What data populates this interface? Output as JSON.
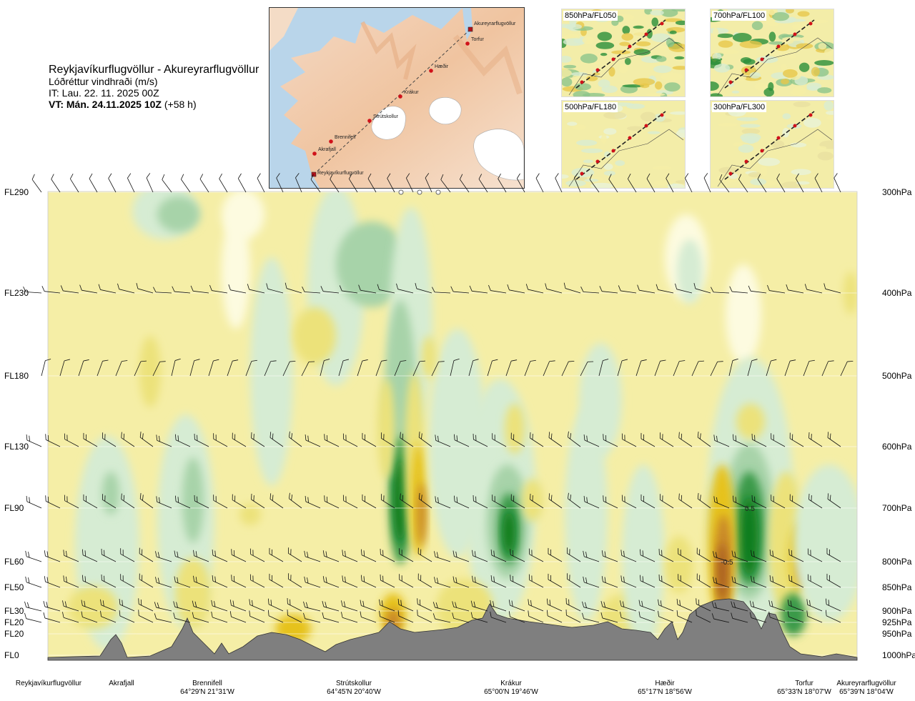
{
  "header": {
    "route": "Reykjavíkurflugvöllur - Akureyrarflugvöllur",
    "parameter": "Lóðréttur vindhraði (m/s)",
    "issue_time": "IT: Lau. 22. 11. 2025 00Z",
    "valid_label": "VT: Mán. 24.11.2025 10Z",
    "valid_offset": "(+58 h)"
  },
  "mini_maps": [
    {
      "label": "850hPa/FL050"
    },
    {
      "label": "700hPa/FL100"
    },
    {
      "label": "500hPa/FL180"
    },
    {
      "label": "300hPa/FL300"
    }
  ],
  "route_map": {
    "places": [
      "Akureyrarflugvöllur",
      "Torfur",
      "Hæðir",
      "Krákur",
      "Strútskollur",
      "Brennifell",
      "Akrafjall",
      "Reykjavíkurflugvöllur"
    ]
  },
  "chart_data": {
    "type": "heatmap",
    "title": "Lóðréttur vindhraði (m/s)",
    "levels": [
      {
        "fl": "FL290",
        "hpa": "300hPa"
      },
      {
        "fl": "FL230",
        "hpa": "400hPa"
      },
      {
        "fl": "FL180",
        "hpa": "500hPa"
      },
      {
        "fl": "FL130",
        "hpa": "600hPa"
      },
      {
        "fl": "FL90",
        "hpa": "700hPa"
      },
      {
        "fl": "FL60",
        "hpa": "800hPa"
      },
      {
        "fl": "FL50",
        "hpa": "850hPa"
      },
      {
        "fl": "FL30",
        "hpa": "900hPa"
      },
      {
        "fl": "FL20",
        "hpa": "925hPa"
      },
      {
        "fl": "FL20",
        "hpa": "950hPa"
      },
      {
        "fl": "FL0",
        "hpa": "1000hPa"
      }
    ],
    "contour_labels": [
      "0.5",
      "-0.5"
    ],
    "waypoints": [
      {
        "name": "Reykjavíkurflugvöllur",
        "coord": ""
      },
      {
        "name": "Akrafjall",
        "coord": ""
      },
      {
        "name": "Brennifell",
        "coord": "64°29'N 21°31'W"
      },
      {
        "name": "Strútskollur",
        "coord": "64°45'N 20°40'W"
      },
      {
        "name": "Krákur",
        "coord": "65°00'N 19°46'W"
      },
      {
        "name": "Hæðir",
        "coord": "65°17'N 18°56'W"
      },
      {
        "name": "Torfur",
        "coord": "65°33'N 18°07'W"
      },
      {
        "name": "Akureyrarflugvöllur",
        "coord": "65°39'N 18°04'W"
      }
    ],
    "colors": {
      "strong_up": "#0b7d1e",
      "up": "#3a9a4a",
      "weak_up": "#a7d3a9",
      "very_weak_up": "#d6ecd3",
      "near_zero": "#fdfbe0",
      "background": "#f5eea6",
      "weak_down": "#ece27a",
      "down": "#e6c21f",
      "strong_down": "#c8862a",
      "very_strong_down": "#a65a1a",
      "terrain": "#7f7f7f"
    }
  }
}
